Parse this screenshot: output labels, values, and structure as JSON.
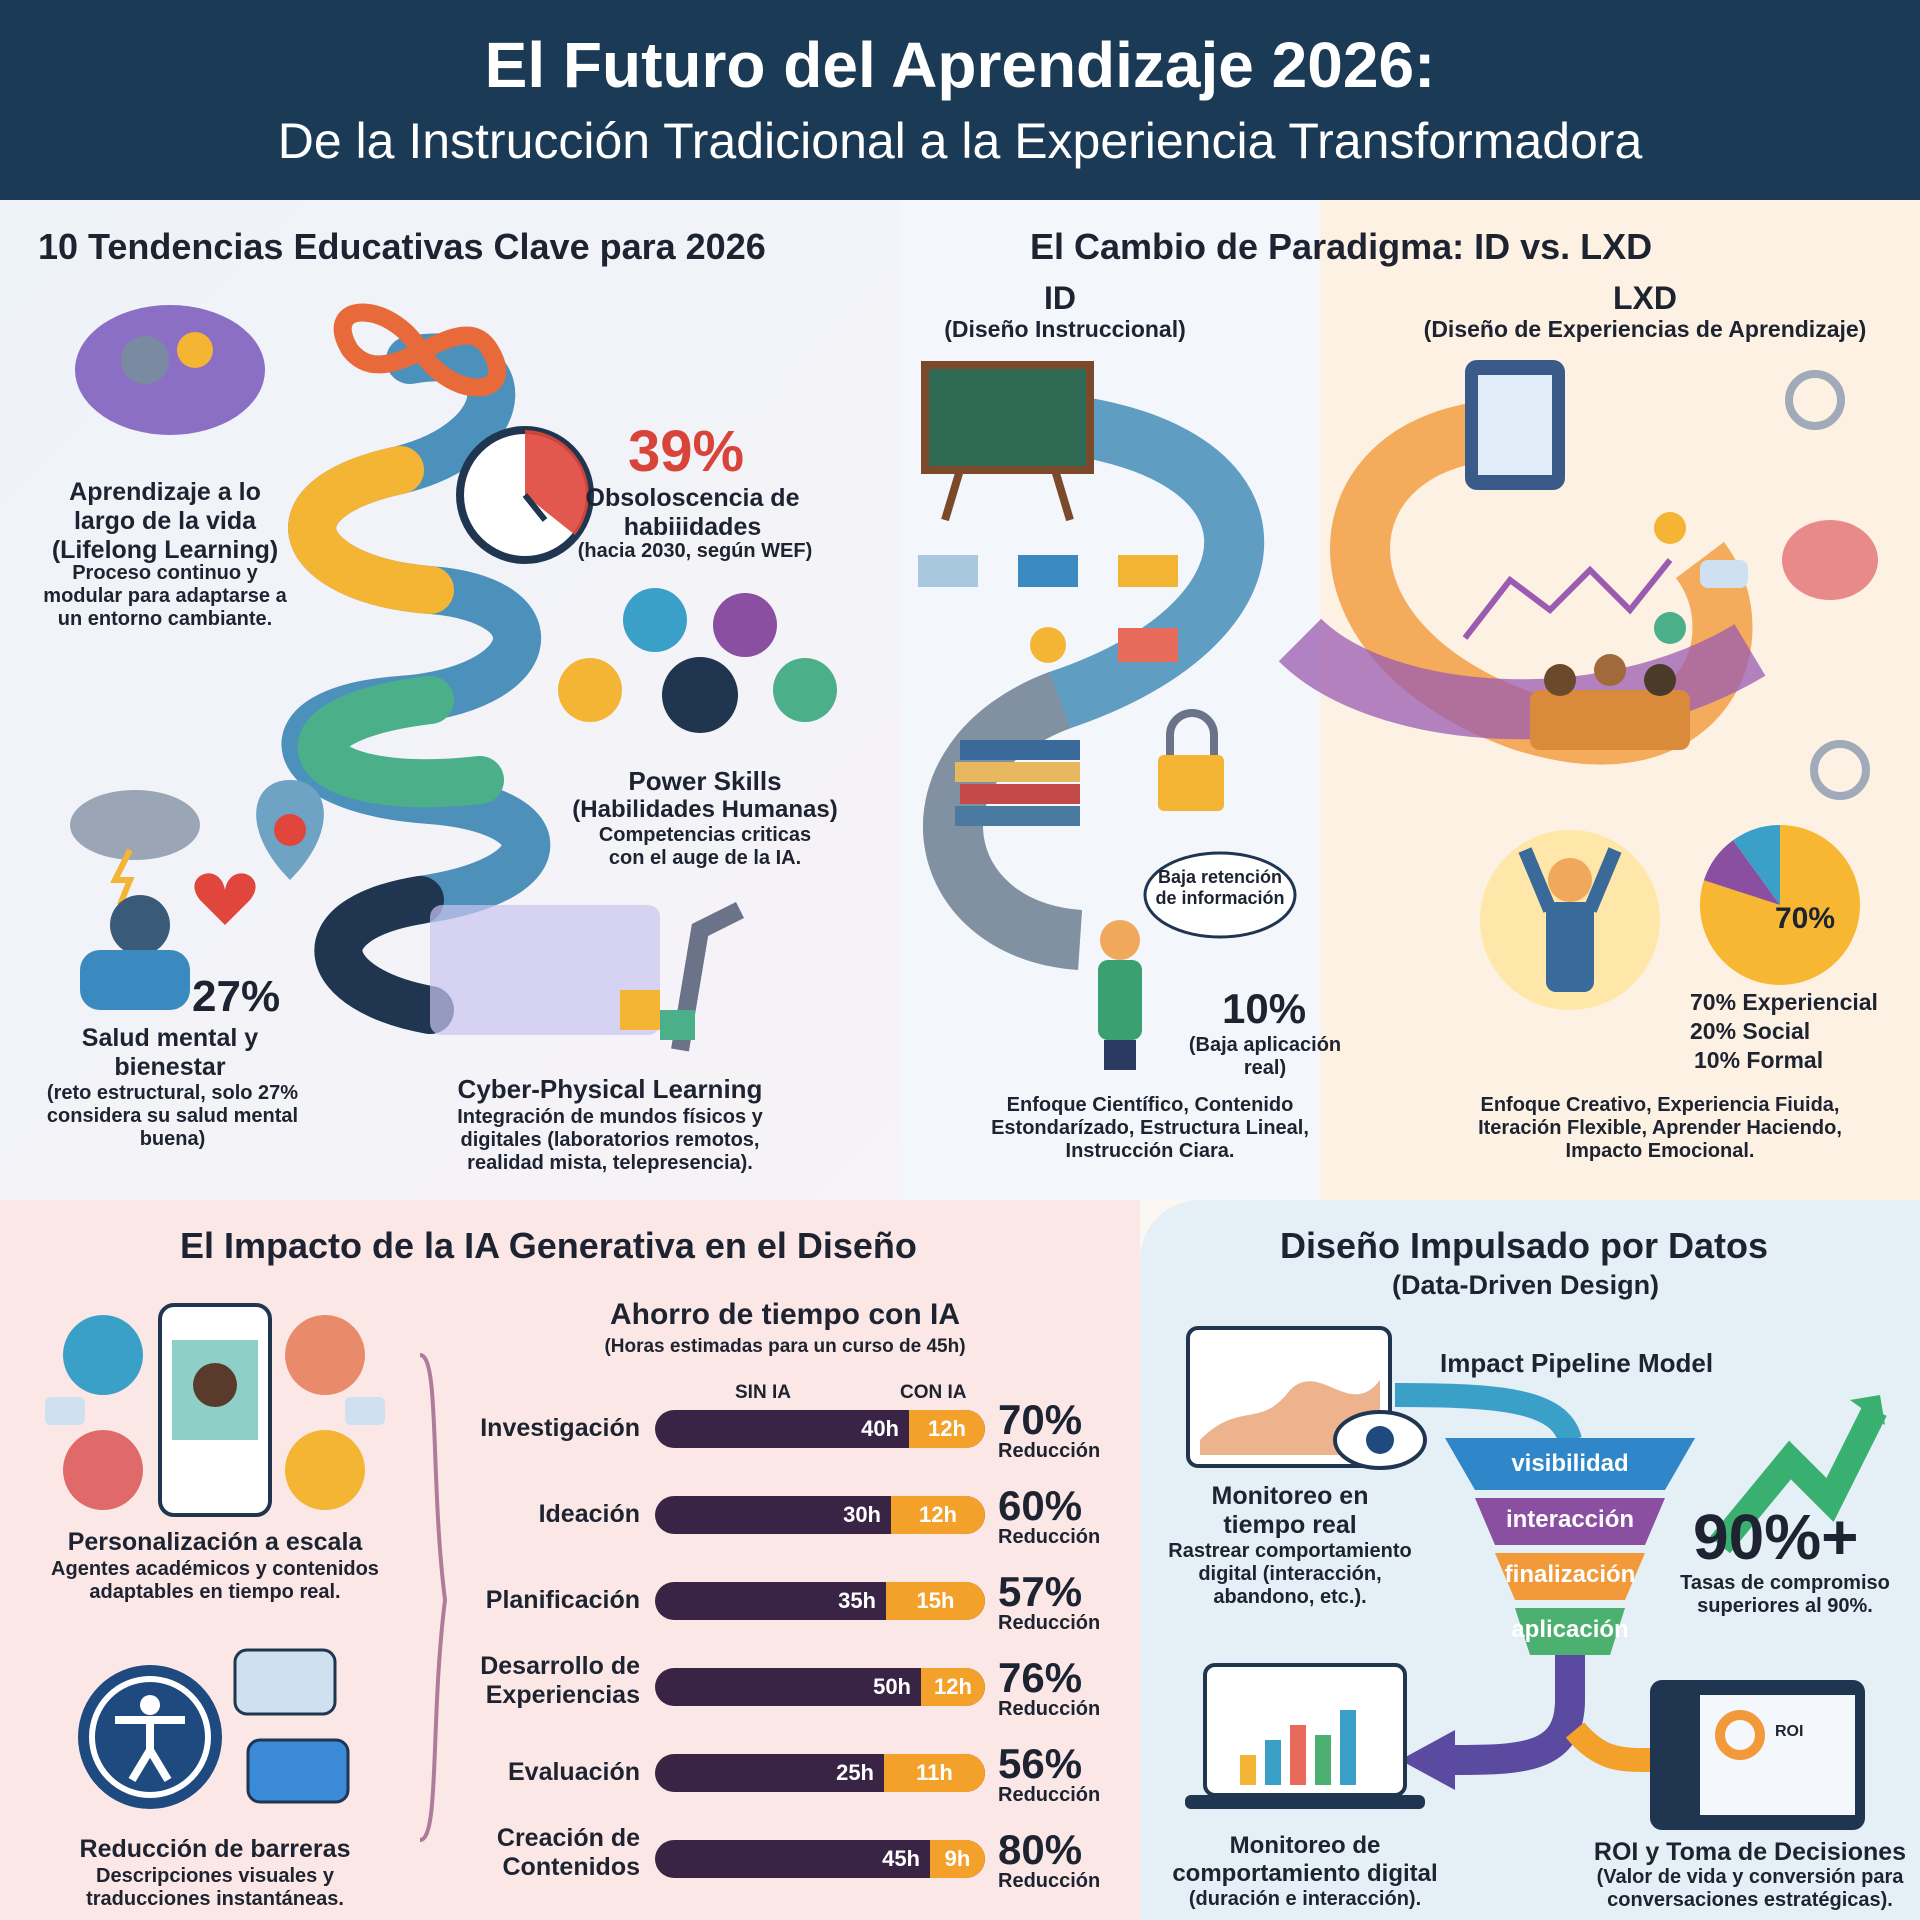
{
  "header": {
    "title": "El Futuro del Aprendizaje 2026:",
    "subtitle": "De la Instrucción Tradicional a la Experiencia Transformadora"
  },
  "trends": {
    "title": "10 Tendencias Educativas Clave para 2026",
    "lifelong": {
      "title": "Aprendizaje a lo largo de la vida (Lifelong Learning)",
      "desc": "Proceso continuo y modular para adaptarse a un entorno cambiante."
    },
    "obsolescence": {
      "stat": "39%",
      "title": "Obsoloscencia de habiiidades",
      "note": "(hacia 2030, según WEF)"
    },
    "power_skills": {
      "title": "Power Skills",
      "subtitle": "(Habilidades Humanas)",
      "desc": "Competencias criticas con el auge de la IA."
    },
    "mental_health": {
      "stat": "27%",
      "title": "Salud mental y bienestar",
      "desc": "(reto estructural, solo 27% considera su salud mental buena)"
    },
    "cyber": {
      "title": "Cyber-Physical Learning",
      "desc": "Integración de mundos físicos y digitales (laboratorios remotos, realidad mista, telepresencia)."
    }
  },
  "paradigm": {
    "title": "El Cambio de Paradigma: ID vs. LXD",
    "id": {
      "label": "ID",
      "sub": "(Diseño Instruccional)",
      "bubble": "Baja retención de información",
      "stat": "10%",
      "stat_desc": "(Baja aplicación real)",
      "desc": "Enfoque Científico, Contenido Estondarízado, Estructura Lineal, Instrucción Ciara."
    },
    "lxd": {
      "label": "LXD",
      "sub": "(Diseño de Experiencias de Aprendizaje)",
      "pie_label": "70%",
      "legend": [
        "70% Experiencial",
        "20% Social",
        "10% Formal"
      ],
      "desc": "Enfoque Creativo, Experiencia Fiuida, Iteración Flexible, Aprender Haciendo, Impacto Emocional.",
      "colors": {
        "experiencial": "#f7b733",
        "social": "#8a4fa0",
        "formal": "#3aa0c8"
      }
    }
  },
  "ia": {
    "title": "El Impacto de la IA Generativa en el Diseño",
    "personalization": {
      "title": "Personalización a escala",
      "desc": "Agentes académicos y contenidos adaptables en tiempo real."
    },
    "barriers": {
      "title": "Reducción de barreras",
      "desc": "Descripciones visuales y traducciones instantáneas."
    },
    "chart_title": "Ahorro de tiempo con IA",
    "chart_subtitle": "(Horas estimadas para un curso de 45h)",
    "col_sin": "SIN IA",
    "col_con": "CON IA",
    "reduction_word": "Reducción",
    "rows": [
      {
        "label": "Investigación",
        "sin": "40h",
        "con": "12h",
        "pct": "70%"
      },
      {
        "label": "Ideación",
        "sin": "30h",
        "con": "12h",
        "pct": "60%"
      },
      {
        "label": "Planificación",
        "sin": "35h",
        "con": "15h",
        "pct": "57%"
      },
      {
        "label": "Desarrollo de Experiencias",
        "sin": "50h",
        "con": "12h",
        "pct": "76%"
      },
      {
        "label": "Evaluación",
        "sin": "25h",
        "con": "11h",
        "pct": "56%"
      },
      {
        "label": "Creación de Contenidos",
        "sin": "45h",
        "con": "9h",
        "pct": "80%"
      }
    ]
  },
  "data_design": {
    "title": "Diseño Impulsado por Datos",
    "subtitle": "(Data-Driven Design)",
    "pipeline_title": "Impact Pipeline Model",
    "funnel": [
      "visibilidad",
      "interacción",
      "finalización",
      "aplicación"
    ],
    "realtime": {
      "title": "Monitoreo en tiempo real",
      "desc": "Rastrear comportamiento digital (interacción, abandono, etc.)."
    },
    "stat": "90%+",
    "stat_desc": "Tasas de compromiso superiores al 90%.",
    "behavior": {
      "title": "Monitoreo de comportamiento digital",
      "desc": "(duración e interacción)."
    },
    "roi": {
      "title": "ROI y Toma de Decisiones",
      "desc": "(Valor de vida y conversión para conversaciones estratégicas).",
      "badge": "ROI"
    }
  }
}
